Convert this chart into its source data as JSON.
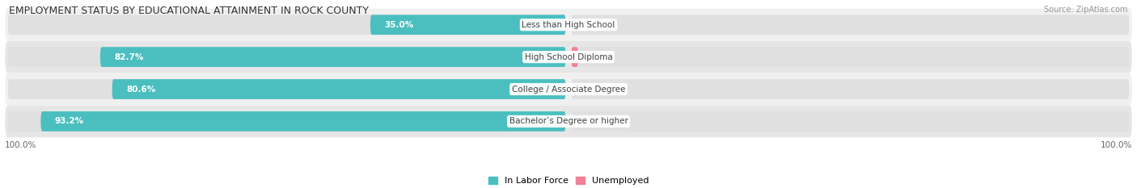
{
  "title": "EMPLOYMENT STATUS BY EDUCATIONAL ATTAINMENT IN ROCK COUNTY",
  "source": "Source: ZipAtlas.com",
  "categories": [
    "Less than High School",
    "High School Diploma",
    "College / Associate Degree",
    "Bachelor’s Degree or higher"
  ],
  "labor_force": [
    35.0,
    82.7,
    80.6,
    93.2
  ],
  "unemployed": [
    0.0,
    1.2,
    0.0,
    0.0
  ],
  "labor_force_color": "#4bbfbf",
  "unemployed_color": "#f08096",
  "row_bg_even": "#f0f0f0",
  "row_bg_odd": "#e6e6e6",
  "bar_track_color": "#e0e0e0",
  "label_text_color": "#666666",
  "category_bg_color": "#ffffff",
  "category_text_color": "#444444",
  "value_inside_color": "#ffffff",
  "value_outside_color": "#666666",
  "axis_label_left": "100.0%",
  "axis_label_right": "100.0%",
  "legend_labor": "In Labor Force",
  "legend_unemployed": "Unemployed",
  "title_fontsize": 9,
  "source_fontsize": 7,
  "bar_label_fontsize": 7.5,
  "category_fontsize": 7.5,
  "legend_fontsize": 8,
  "axis_fontsize": 7.5
}
